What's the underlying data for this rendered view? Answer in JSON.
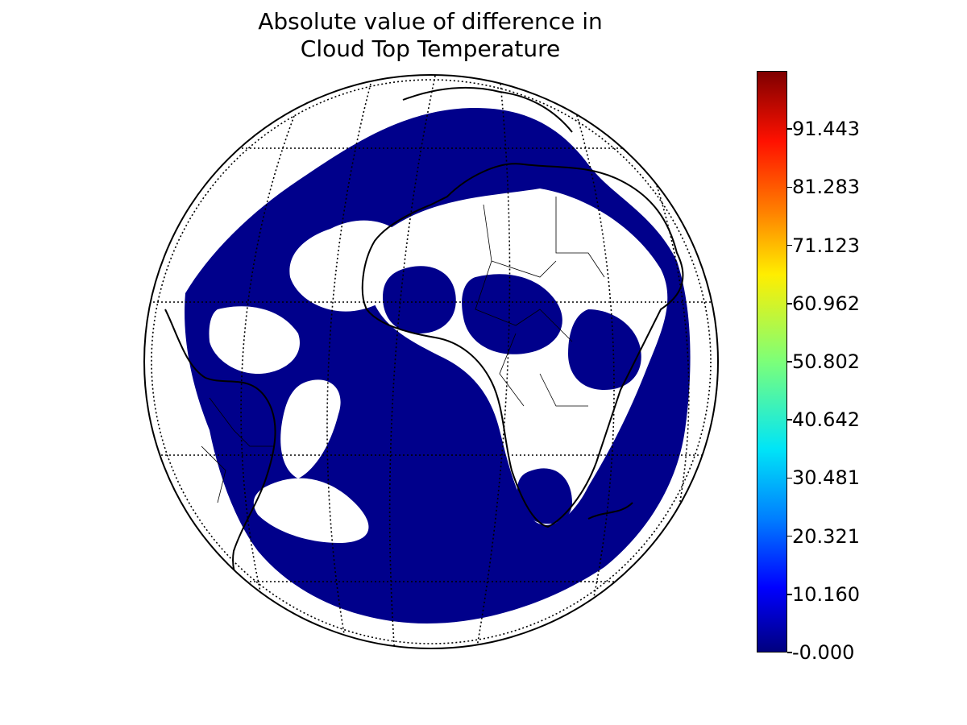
{
  "title": {
    "line1": "Absolute value of difference in",
    "line2": "Cloud Top Temperature"
  },
  "colorbar": {
    "colormap": "jet",
    "min": -0.0,
    "max": 101.6,
    "ticks": [
      {
        "value": -0.0,
        "label": "-0.000"
      },
      {
        "value": 10.16,
        "label": "10.160"
      },
      {
        "value": 20.321,
        "label": "20.321"
      },
      {
        "value": 30.481,
        "label": "30.481"
      },
      {
        "value": 40.642,
        "label": "40.642"
      },
      {
        "value": 50.802,
        "label": "50.802"
      },
      {
        "value": 60.962,
        "label": "60.962"
      },
      {
        "value": 71.123,
        "label": "71.123"
      },
      {
        "value": 81.283,
        "label": "81.283"
      },
      {
        "value": 91.443,
        "label": "91.443"
      }
    ]
  },
  "map": {
    "projection": "orthographic",
    "graticule": "dotted",
    "field_color": "#00008b",
    "background": "#ffffff"
  }
}
